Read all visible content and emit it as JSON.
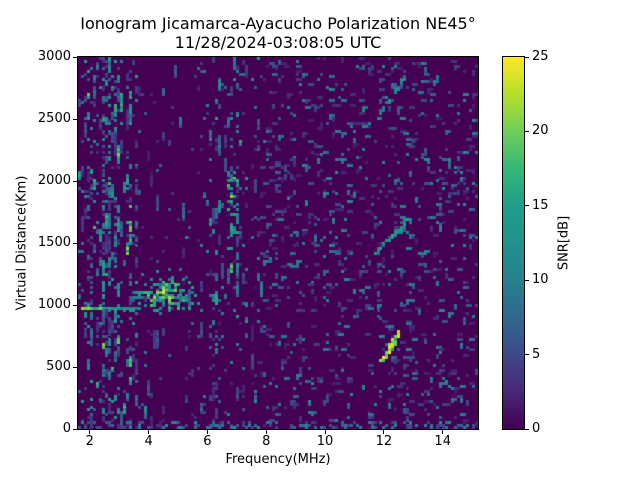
{
  "window": {
    "background_color": "#ffffff",
    "text_color": "#000000"
  },
  "chart_data": {
    "type": "heatmap",
    "title": "Ionogram Jicamarca-Ayacucho Polarization NE45°",
    "subtitle": "11/28/2024-03:08:05 UTC",
    "xlabel": "Frequency(MHz)",
    "ylabel": "Virtual Distance(Km)",
    "x_range": [
      1.6,
      15.2
    ],
    "y_range": [
      0,
      3000
    ],
    "x_ticks": [
      2,
      4,
      6,
      8,
      10,
      12,
      14
    ],
    "y_ticks": [
      0,
      500,
      1000,
      1500,
      2000,
      2500,
      3000
    ],
    "grid": false,
    "colorbar": {
      "label": "SNR[dB]",
      "range": [
        0,
        25
      ],
      "ticks": [
        0,
        5,
        10,
        15,
        20,
        25
      ],
      "colormap": "viridis",
      "low_color": "#440154",
      "high_color": "#fde725"
    },
    "background_snr_db": 0,
    "features": [
      {
        "name": "left-interference-band",
        "style": "vertical-streaks",
        "f": [
          1.6,
          3.6
        ],
        "km": [
          0,
          3000
        ],
        "density": 0.5,
        "snr": [
          3,
          16
        ]
      },
      {
        "name": "mid-background-speckle",
        "style": "vertical-streaks",
        "f": [
          3.6,
          7.8
        ],
        "km": [
          0,
          3000
        ],
        "density": 0.14,
        "snr": [
          2,
          12
        ]
      },
      {
        "name": "right-background-speckle",
        "style": "chunky-speckle",
        "f": [
          7.8,
          15.2
        ],
        "km": [
          0,
          3000
        ],
        "density": 0.085,
        "snr": [
          2,
          12
        ]
      },
      {
        "name": "e-region-echo-line",
        "style": "horizontal-line",
        "f": [
          1.6,
          3.7
        ],
        "km": [
          962,
          1008
        ],
        "density": 0.92,
        "snr": [
          12,
          25
        ]
      },
      {
        "name": "f-region-echo-cluster",
        "style": "blob",
        "f": [
          3.4,
          6.2
        ],
        "km": [
          860,
          1360
        ],
        "center": [
          4.55,
          1075
        ],
        "sigma": [
          0.55,
          75
        ],
        "density": 0.9,
        "snr": [
          8,
          25
        ]
      },
      {
        "name": "interference-streaks-6.9mhz",
        "style": "vertical-streaks",
        "f": [
          6.6,
          7.12
        ],
        "km": [
          850,
          2950
        ],
        "density": 0.3,
        "snr": [
          5,
          16
        ]
      },
      {
        "name": "bright-cluster-6.9mhz",
        "style": "speckle",
        "f": [
          6.68,
          7.05
        ],
        "km": [
          1730,
          2060
        ],
        "density": 0.4,
        "snr": [
          9,
          22
        ]
      },
      {
        "name": "thin-streak-6.2mhz",
        "style": "vertical-streaks",
        "f": [
          6.1,
          6.3
        ],
        "km": [
          900,
          1300
        ],
        "density": 0.45,
        "snr": [
          6,
          14
        ]
      },
      {
        "name": "oblique-trace-low",
        "style": "diagonal",
        "from": [
          11.95,
          560
        ],
        "to": [
          12.55,
          770
        ],
        "density": 0.8,
        "snr": [
          12,
          25
        ]
      },
      {
        "name": "oblique-trace-mid",
        "style": "diagonal",
        "from": [
          11.65,
          1420
        ],
        "to": [
          12.95,
          1690
        ],
        "density": 0.5,
        "snr": [
          7,
          17
        ]
      },
      {
        "name": "oblique-trace-high",
        "style": "diagonal",
        "from": [
          11.9,
          2540
        ],
        "to": [
          12.75,
          2850
        ],
        "density": 0.38,
        "snr": [
          6,
          14
        ]
      },
      {
        "name": "near-range-noise",
        "style": "speckle",
        "f": [
          1.6,
          15.2
        ],
        "km": [
          0,
          45
        ],
        "density": 0.28,
        "snr": [
          4,
          13
        ]
      }
    ]
  }
}
